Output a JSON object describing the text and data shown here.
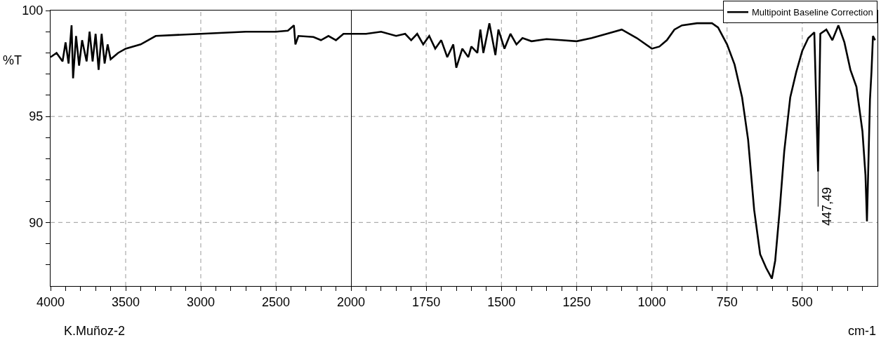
{
  "chart_data": [
    {
      "type": "line",
      "ylabel": "%T",
      "annotations": [
        "K.Muñoz-2"
      ],
      "grid": true,
      "legend": false,
      "tick_labels": "xy",
      "line_style": "solid",
      "marker": "none",
      "x": [
        4000,
        3960,
        3920,
        3900,
        3880,
        3860,
        3850,
        3830,
        3810,
        3790,
        3760,
        3740,
        3720,
        3700,
        3680,
        3660,
        3640,
        3620,
        3600,
        3550,
        3500,
        3400,
        3300,
        3000,
        2700,
        2500,
        2420,
        2380,
        2370,
        2350,
        2250,
        2200,
        2150,
        2100,
        2050,
        2000
      ],
      "series": [
        {
          "color": "#000000",
          "values": [
            97.8,
            98.0,
            97.6,
            98.5,
            97.5,
            99.3,
            96.8,
            98.8,
            97.4,
            98.6,
            97.6,
            99.0,
            97.6,
            98.9,
            97.2,
            98.9,
            97.5,
            98.4,
            97.7,
            98.0,
            98.2,
            98.4,
            98.8,
            98.9,
            99.0,
            99.0,
            99.05,
            99.3,
            98.4,
            98.8,
            98.75,
            98.6,
            98.8,
            98.6,
            98.9,
            98.9
          ]
        }
      ],
      "xlim": [
        4000,
        2000
      ],
      "xticks": [
        4000,
        {
          "value": 3900,
          "label": null
        },
        {
          "value": 3800,
          "label": null
        },
        {
          "value": 3700,
          "label": null
        },
        {
          "value": 3600,
          "label": null
        },
        3500,
        {
          "value": 3400,
          "label": null
        },
        {
          "value": 3300,
          "label": null
        },
        {
          "value": 3200,
          "label": null
        },
        {
          "value": 3100,
          "label": null
        },
        3000,
        {
          "value": 2900,
          "label": null
        },
        {
          "value": 2800,
          "label": null
        },
        {
          "value": 2700,
          "label": null
        },
        {
          "value": 2600,
          "label": null
        },
        2500,
        {
          "value": 2400,
          "label": null
        },
        {
          "value": 2300,
          "label": null
        },
        {
          "value": 2200,
          "label": null
        },
        {
          "value": 2100,
          "label": null
        },
        2000
      ],
      "ylim": [
        87,
        100
      ],
      "yticks": [
        {
          "value": 88,
          "label": null
        },
        {
          "value": 89,
          "label": null
        },
        90,
        {
          "value": 91,
          "label": null
        },
        {
          "value": 92,
          "label": null
        },
        {
          "value": 93,
          "label": null
        },
        {
          "value": 94,
          "label": null
        },
        95,
        {
          "value": 96,
          "label": null
        },
        {
          "value": 97,
          "label": null
        },
        {
          "value": 98,
          "label": null
        },
        {
          "value": 99,
          "label": null
        },
        100
      ]
    },
    {
      "type": "line",
      "xlabel": "cm-1",
      "annotations": [
        {
          "text": "447,49",
          "x": 447.49,
          "y": 92.4
        }
      ],
      "grid": true,
      "legend": "top right",
      "tick_labels": "x",
      "line_style": "solid",
      "marker": "none",
      "x": [
        2000,
        1950,
        1900,
        1850,
        1820,
        1800,
        1780,
        1760,
        1740,
        1720,
        1700,
        1680,
        1660,
        1650,
        1630,
        1610,
        1600,
        1580,
        1570,
        1560,
        1540,
        1520,
        1510,
        1490,
        1470,
        1450,
        1430,
        1400,
        1350,
        1300,
        1250,
        1200,
        1150,
        1100,
        1050,
        1000,
        975,
        950,
        925,
        900,
        850,
        800,
        780,
        750,
        725,
        700,
        680,
        660,
        640,
        620,
        601,
        590,
        575,
        560,
        540,
        520,
        500,
        480,
        460,
        447.49,
        440,
        420,
        400,
        380,
        360,
        340,
        320,
        300,
        290,
        285,
        280,
        275,
        270,
        265,
        258
      ],
      "series": [
        {
          "name": "Multipoint Baseline Correction",
          "color": "#000000",
          "values": [
            98.9,
            98.9,
            99.0,
            98.8,
            98.9,
            98.6,
            98.9,
            98.4,
            98.8,
            98.2,
            98.6,
            97.8,
            98.4,
            97.3,
            98.2,
            97.8,
            98.3,
            98.0,
            99.1,
            98.0,
            99.4,
            97.9,
            99.1,
            98.2,
            98.9,
            98.4,
            98.7,
            98.55,
            98.65,
            98.6,
            98.55,
            98.7,
            98.9,
            99.1,
            98.7,
            98.2,
            98.3,
            98.6,
            99.1,
            99.3,
            99.4,
            99.4,
            99.2,
            98.4,
            97.45,
            95.9,
            93.9,
            90.6,
            88.5,
            87.85,
            87.35,
            88.2,
            90.6,
            93.35,
            95.9,
            97.1,
            98.1,
            98.7,
            98.97,
            92.4,
            98.9,
            99.1,
            98.6,
            99.3,
            98.5,
            97.2,
            96.4,
            94.3,
            92.25,
            90.05,
            92.9,
            95.8,
            97.1,
            98.8,
            98.6
          ]
        }
      ],
      "xlim": [
        2000,
        250
      ],
      "xticks": [
        {
          "value": 1950,
          "label": null
        },
        {
          "value": 1900,
          "label": null
        },
        {
          "value": 1850,
          "label": null
        },
        {
          "value": 1800,
          "label": null
        },
        1750,
        {
          "value": 1700,
          "label": null
        },
        {
          "value": 1650,
          "label": null
        },
        {
          "value": 1600,
          "label": null
        },
        {
          "value": 1550,
          "label": null
        },
        1500,
        {
          "value": 1450,
          "label": null
        },
        {
          "value": 1400,
          "label": null
        },
        {
          "value": 1350,
          "label": null
        },
        {
          "value": 1300,
          "label": null
        },
        1250,
        {
          "value": 1200,
          "label": null
        },
        {
          "value": 1150,
          "label": null
        },
        {
          "value": 1100,
          "label": null
        },
        {
          "value": 1050,
          "label": null
        },
        1000,
        {
          "value": 950,
          "label": null
        },
        {
          "value": 900,
          "label": null
        },
        {
          "value": 850,
          "label": null
        },
        {
          "value": 800,
          "label": null
        },
        750,
        {
          "value": 700,
          "label": null
        },
        {
          "value": 650,
          "label": null
        },
        {
          "value": 600,
          "label": null
        },
        {
          "value": 550,
          "label": null
        },
        500,
        {
          "value": 450,
          "label": null
        },
        {
          "value": 400,
          "label": null
        },
        {
          "value": 350,
          "label": null
        },
        {
          "value": 300,
          "label": null
        }
      ],
      "ylim": [
        87,
        100
      ],
      "yticks": [
        {
          "value": 88,
          "label": null
        },
        {
          "value": 89,
          "label": null
        },
        90,
        {
          "value": 91,
          "label": null
        },
        {
          "value": 92,
          "label": null
        },
        {
          "value": 93,
          "label": null
        },
        {
          "value": 94,
          "label": null
        },
        95,
        {
          "value": 96,
          "label": null
        },
        {
          "value": 97,
          "label": null
        },
        {
          "value": 98,
          "label": null
        },
        {
          "value": 99,
          "label": null
        },
        100
      ]
    }
  ]
}
